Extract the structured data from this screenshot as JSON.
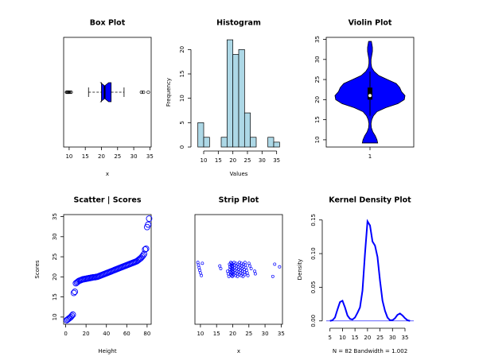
{
  "chart_data": [
    {
      "type": "boxplot",
      "title": "Box Plot",
      "x_label": "x",
      "color": "#0000ff",
      "whisker_low": 16,
      "q1": 20,
      "median": 21,
      "q3": 23,
      "whisker_high": 27,
      "outliers": [
        9.2,
        9.4,
        9.6,
        9.8,
        10.0,
        10.3,
        10.6,
        32.4,
        33.0,
        34.5
      ],
      "xlim": [
        8.3,
        35.4
      ],
      "xticks": [
        10,
        15,
        20,
        25,
        30,
        35
      ]
    },
    {
      "type": "histogram",
      "title": "Histogram",
      "x_label": "Values",
      "y_label": "Frequency",
      "color": "#add8e6",
      "bins": [
        8,
        10,
        12,
        14,
        16,
        18,
        20,
        22,
        24,
        26,
        28,
        30,
        32,
        34,
        36
      ],
      "counts": [
        5,
        2,
        0,
        0,
        2,
        22,
        19,
        20,
        7,
        2,
        0,
        0,
        2,
        1
      ],
      "xlim": [
        7,
        37
      ],
      "xticks": [
        10,
        15,
        20,
        25,
        30,
        35
      ],
      "ylim": [
        0,
        22.5
      ],
      "yticks": [
        0,
        5,
        10,
        15,
        20
      ]
    },
    {
      "type": "violin",
      "title": "Violin Plot",
      "color": "#0000ff",
      "categories": [
        "1"
      ],
      "y": [
        9.2,
        10,
        11,
        12,
        13,
        14,
        15,
        16,
        17,
        18,
        19,
        20,
        21,
        22,
        23,
        24,
        25,
        26,
        27,
        28,
        29,
        30,
        31,
        32,
        33,
        34,
        34.5
      ],
      "width": [
        0.22,
        0.2,
        0.15,
        0.08,
        0.04,
        0.03,
        0.05,
        0.1,
        0.2,
        0.45,
        0.8,
        0.98,
        1.0,
        0.9,
        0.85,
        0.75,
        0.5,
        0.25,
        0.12,
        0.05,
        0.03,
        0.03,
        0.05,
        0.07,
        0.07,
        0.05,
        0.04
      ],
      "whisker_low": 16,
      "q1": 20,
      "median": 21,
      "q3": 23,
      "whisker_high": 27,
      "ylim": [
        8.2,
        35.5
      ],
      "yticks": [
        10,
        15,
        20,
        25,
        30,
        35
      ]
    },
    {
      "type": "scatter",
      "title": "Scatter | Scores",
      "x_label": "Height",
      "y_label": "Scores",
      "color": "#0000ff",
      "x": [
        1,
        2,
        3,
        4,
        5,
        6,
        7,
        8,
        9,
        10,
        11,
        12,
        13,
        14,
        15,
        16,
        17,
        18,
        19,
        20,
        21,
        22,
        23,
        24,
        25,
        26,
        27,
        28,
        29,
        30,
        31,
        32,
        33,
        34,
        35,
        36,
        37,
        38,
        39,
        40,
        41,
        42,
        43,
        44,
        45,
        46,
        47,
        48,
        49,
        50,
        51,
        52,
        53,
        54,
        55,
        56,
        57,
        58,
        59,
        60,
        61,
        62,
        63,
        64,
        65,
        66,
        67,
        68,
        69,
        70,
        71,
        72,
        73,
        74,
        75,
        76,
        77,
        78,
        79,
        80,
        81,
        82
      ],
      "y": [
        9.2,
        9.4,
        9.6,
        9.8,
        10.0,
        10.3,
        10.6,
        16.0,
        16.3,
        18.4,
        18.6,
        18.8,
        19.0,
        19.1,
        19.2,
        19.3,
        19.4,
        19.4,
        19.5,
        19.5,
        19.6,
        19.6,
        19.7,
        19.7,
        19.8,
        19.8,
        19.9,
        19.9,
        19.9,
        20.0,
        20.0,
        20.1,
        20.2,
        20.3,
        20.4,
        20.5,
        20.6,
        20.7,
        20.8,
        20.9,
        21.0,
        21.1,
        21.2,
        21.3,
        21.4,
        21.5,
        21.6,
        21.7,
        21.8,
        21.9,
        22.0,
        22.1,
        22.2,
        22.3,
        22.4,
        22.5,
        22.6,
        22.7,
        22.8,
        22.9,
        23.0,
        23.1,
        23.2,
        23.3,
        23.4,
        23.5,
        23.6,
        23.7,
        23.8,
        23.9,
        24.1,
        24.3,
        24.5,
        24.7,
        25.0,
        25.3,
        25.7,
        26.8,
        27.0,
        32.4,
        33.0,
        34.5
      ],
      "xlim": [
        -2,
        84
      ],
      "xticks": [
        0,
        20,
        40,
        60,
        80
      ],
      "ylim": [
        8.2,
        35.5
      ],
      "yticks": [
        10,
        15,
        20,
        25,
        30,
        35
      ]
    },
    {
      "type": "strip",
      "title": "Strip Plot",
      "x_label": "x",
      "color": "#0000ff",
      "values": [
        9.2,
        9.4,
        9.6,
        9.8,
        10.0,
        10.3,
        10.6,
        16.0,
        16.3,
        18.4,
        18.6,
        18.8,
        19.0,
        19.1,
        19.2,
        19.3,
        19.4,
        19.4,
        19.5,
        19.5,
        19.6,
        19.6,
        19.7,
        19.7,
        19.8,
        19.8,
        19.9,
        19.9,
        19.9,
        20.0,
        20.0,
        20.1,
        20.2,
        20.3,
        20.4,
        20.5,
        20.6,
        20.7,
        20.8,
        20.9,
        21.0,
        21.1,
        21.2,
        21.3,
        21.4,
        21.5,
        21.6,
        21.7,
        21.8,
        21.9,
        22.0,
        22.1,
        22.2,
        22.3,
        22.4,
        22.5,
        22.6,
        22.7,
        22.8,
        22.9,
        23.0,
        23.1,
        23.2,
        23.3,
        23.4,
        23.5,
        23.6,
        23.7,
        23.8,
        23.9,
        24.1,
        24.3,
        24.5,
        24.7,
        25.0,
        25.3,
        25.7,
        26.8,
        27.0,
        32.4,
        33.0,
        34.5
      ],
      "xlim": [
        8.3,
        35.4
      ],
      "xticks": [
        10,
        15,
        20,
        25,
        30,
        35
      ]
    },
    {
      "type": "line",
      "title": "Kernel Density Plot",
      "x_label": "N = 82   Bandwidth = 1.002",
      "y_label": "Density",
      "color": "#0000ff",
      "x": [
        5,
        6,
        7,
        8,
        9,
        10,
        11,
        12,
        13,
        14,
        15,
        16,
        17,
        18,
        19,
        20,
        21,
        22,
        23,
        24,
        25,
        26,
        27,
        28,
        29,
        30,
        31,
        32,
        33,
        34,
        35,
        36,
        37
      ],
      "y": [
        0,
        0.001,
        0.005,
        0.017,
        0.028,
        0.03,
        0.02,
        0.008,
        0.003,
        0.002,
        0.005,
        0.012,
        0.02,
        0.045,
        0.1,
        0.148,
        0.142,
        0.118,
        0.112,
        0.095,
        0.06,
        0.03,
        0.015,
        0.005,
        0.001,
        0.001,
        0.004,
        0.009,
        0.011,
        0.008,
        0.004,
        0.001,
        0
      ],
      "xlim": [
        3.5,
        38.5
      ],
      "xticks": [
        5,
        10,
        15,
        20,
        25,
        30,
        35
      ],
      "ylim": [
        -0.005,
        0.158
      ],
      "yticks": [
        {
          "value": 0,
          "label": "0.00"
        },
        {
          "value": 0.05,
          "label": "0.05"
        },
        {
          "value": 0.1,
          "label": "0.10"
        },
        {
          "value": 0.15,
          "label": "0.15"
        }
      ]
    }
  ]
}
